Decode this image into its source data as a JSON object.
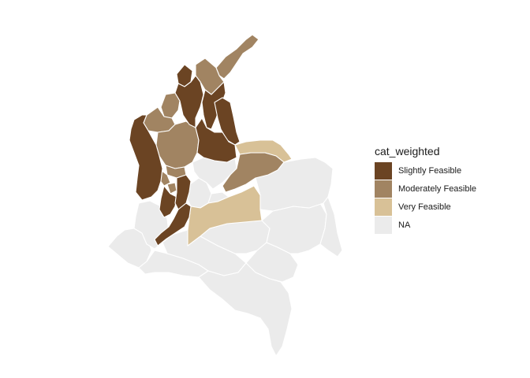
{
  "legend": {
    "title": "cat_weighted",
    "items": [
      {
        "label": "Slightly Feasible",
        "color": "#6b4423"
      },
      {
        "label": "Moderately Feasible",
        "color": "#a18462"
      },
      {
        "label": "Very Feasible",
        "color": "#d8c197"
      },
      {
        "label": "NA",
        "color": "#ebebeb"
      }
    ]
  },
  "regions": [
    {
      "id": "la-guajira",
      "category": "Moderately Feasible"
    },
    {
      "id": "magdalena",
      "category": "Moderately Feasible"
    },
    {
      "id": "atlantico",
      "category": "Slightly Feasible"
    },
    {
      "id": "cesar",
      "category": "Slightly Feasible"
    },
    {
      "id": "bolivar",
      "category": "Slightly Feasible"
    },
    {
      "id": "sucre",
      "category": "Moderately Feasible"
    },
    {
      "id": "cordoba",
      "category": "Moderately Feasible"
    },
    {
      "id": "norte-de-santander",
      "category": "Slightly Feasible"
    },
    {
      "id": "santander",
      "category": "Slightly Feasible"
    },
    {
      "id": "antioquia",
      "category": "Moderately Feasible"
    },
    {
      "id": "choco",
      "category": "Slightly Feasible"
    },
    {
      "id": "arauca",
      "category": "Very Feasible"
    },
    {
      "id": "casanare",
      "category": "Moderately Feasible"
    },
    {
      "id": "meta",
      "category": "Very Feasible"
    },
    {
      "id": "caldas",
      "category": "Moderately Feasible"
    },
    {
      "id": "risaralda",
      "category": "Moderately Feasible"
    },
    {
      "id": "quindio",
      "category": "Moderately Feasible"
    },
    {
      "id": "tolima",
      "category": "Slightly Feasible"
    },
    {
      "id": "valle-del-cauca",
      "category": "Slightly Feasible"
    },
    {
      "id": "huila",
      "category": "Slightly Feasible"
    },
    {
      "id": "boyaca",
      "category": "NA"
    },
    {
      "id": "cundinamarca",
      "category": "NA"
    },
    {
      "id": "cauca",
      "category": "NA"
    },
    {
      "id": "narino",
      "category": "NA"
    },
    {
      "id": "putumayo",
      "category": "NA"
    },
    {
      "id": "caqueta",
      "category": "NA"
    },
    {
      "id": "vichada",
      "category": "NA"
    },
    {
      "id": "guainia",
      "category": "NA"
    },
    {
      "id": "guaviare",
      "category": "NA"
    },
    {
      "id": "vaupes",
      "category": "NA"
    },
    {
      "id": "amazonas",
      "category": "NA"
    }
  ]
}
